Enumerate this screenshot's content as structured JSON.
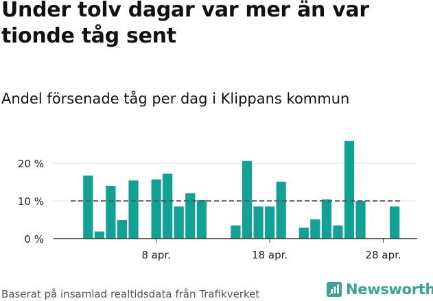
{
  "title": "Under tolv dagar var mer än var tionde tåg sent",
  "subtitle": "Andel försenade tåg per dag i Klippans kommun",
  "source": "Baserat på insamlad realtidsdata från Trafikverket",
  "brand": {
    "name": "Newsworthy",
    "icon": "bar-chart-logo-icon",
    "color": "#3aa394"
  },
  "colors": {
    "bar": "#11a295",
    "reference_line": "#555555",
    "grid": "#e0e0e0"
  },
  "chart_data": {
    "type": "bar",
    "x_unit": "day",
    "x": [
      "2024-04-01",
      "2024-04-02",
      "2024-04-03",
      "2024-04-04",
      "2024-04-05",
      "2024-04-06",
      "2024-04-07",
      "2024-04-08",
      "2024-04-09",
      "2024-04-10",
      "2024-04-11",
      "2024-04-12",
      "2024-04-13",
      "2024-04-14",
      "2024-04-15",
      "2024-04-16",
      "2024-04-17",
      "2024-04-18",
      "2024-04-19",
      "2024-04-20",
      "2024-04-21",
      "2024-04-22",
      "2024-04-23",
      "2024-04-24",
      "2024-04-25",
      "2024-04-26",
      "2024-04-27",
      "2024-04-28",
      "2024-04-29",
      "2024-04-30"
    ],
    "values": [
      null,
      16.7,
      1.9,
      14.0,
      4.9,
      15.4,
      null,
      15.7,
      17.2,
      8.5,
      12.0,
      10.2,
      null,
      null,
      3.5,
      20.6,
      8.5,
      8.5,
      15.1,
      null,
      2.9,
      5.1,
      10.4,
      3.5,
      25.9,
      10.0,
      null,
      null,
      8.5,
      null
    ],
    "ylim": [
      0,
      28
    ],
    "yticks": [
      0,
      10,
      20
    ],
    "ytick_labels": [
      "0 %",
      "10 %",
      "20 %"
    ],
    "xticks": [
      "2024-04-08",
      "2024-04-18",
      "2024-04-28"
    ],
    "xtick_labels": [
      "8 apr.",
      "18 apr.",
      "28 apr."
    ],
    "reference_line": {
      "value": 10,
      "style": "dashed"
    },
    "grid": true
  }
}
